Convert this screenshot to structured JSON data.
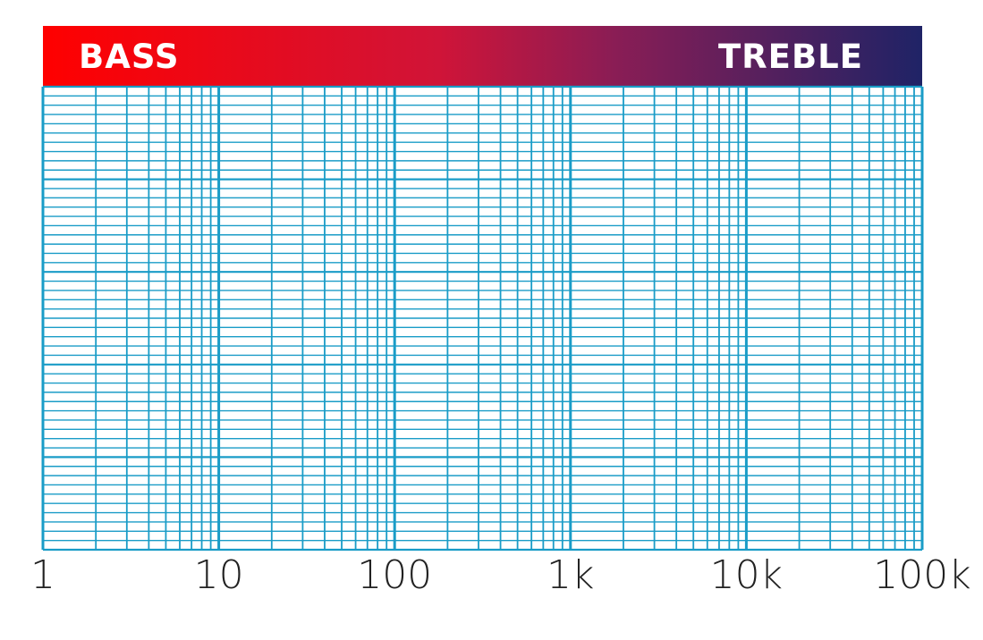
{
  "banner": {
    "left_label": "BASS",
    "right_label": "TREBLE",
    "gradient_start": "#ff0000",
    "gradient_end": "#1f2366"
  },
  "chart_data": {
    "type": "line",
    "title": "",
    "xlabel": "",
    "ylabel": "",
    "x_scale": "log",
    "xlim": [
      1,
      100000
    ],
    "x_ticks": [
      1,
      10,
      100,
      1000,
      10000,
      100000
    ],
    "x_tick_labels": [
      "1",
      "10",
      "100",
      "1k",
      "10k",
      "100k"
    ],
    "grid": true,
    "grid_color": "#1a9cc7",
    "series": []
  }
}
